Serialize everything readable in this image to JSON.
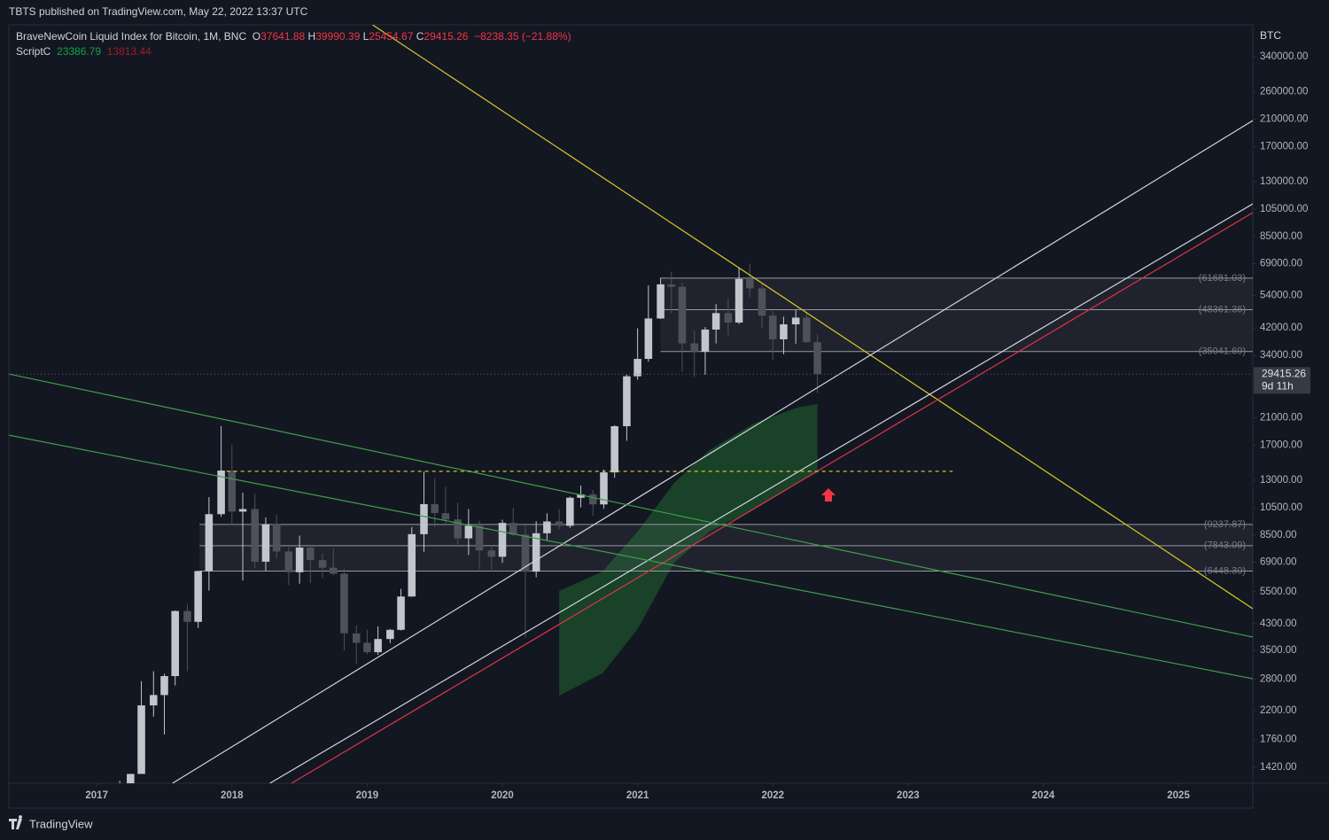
{
  "header": {
    "text": "TBTS published on TradingView.com, May 22, 2022 13:37 UTC"
  },
  "legend": {
    "symbol": "BraveNewCoin Liquid Index for Bitcoin, 1M, BNC",
    "fields": [
      {
        "key": "O",
        "value": 37641.88
      },
      {
        "key": "H",
        "value": 39990.39
      },
      {
        "key": "L",
        "value": 25454.67
      },
      {
        "key": "C",
        "value": 29415.26
      }
    ],
    "change": {
      "value": -8238.35,
      "label": "−8238.35"
    },
    "change_pct": {
      "value": -21.88,
      "label": "(−21.88%)"
    }
  },
  "footer": {
    "brand": "TradingView"
  },
  "chart_data": {
    "type": "candlestick",
    "y_axis_label": "BTC",
    "log_scale": true,
    "grid": false,
    "up_color": "#c3c5cc",
    "down_color": "#4e515b",
    "xlim": [
      2016.35,
      2025.55
    ],
    "xticks": [
      2017,
      2018,
      2019,
      2020,
      2021,
      2022,
      2023,
      2024,
      2025
    ],
    "ylim": [
      1256,
      434800
    ],
    "yticks": [
      {
        "value": 340000,
        "label": "340000.00"
      },
      {
        "value": 260000,
        "label": "260000.00"
      },
      {
        "value": 210000,
        "label": "210000.00"
      },
      {
        "value": 170000,
        "label": "170000.00"
      },
      {
        "value": 130000,
        "label": "130000.00"
      },
      {
        "value": 105000,
        "label": "105000.00"
      },
      {
        "value": 85000,
        "label": "85000.00"
      },
      {
        "value": 69000,
        "label": "69000.00"
      },
      {
        "value": 54000,
        "label": "54000.00"
      },
      {
        "value": 42000,
        "label": "42000.00"
      },
      {
        "value": 34000,
        "label": "34000.00"
      },
      {
        "value": 21000,
        "label": "21000.00"
      },
      {
        "value": 17000,
        "label": "17000.00"
      },
      {
        "value": 13000,
        "label": "13000.00"
      },
      {
        "value": 10500,
        "label": "10500.00"
      },
      {
        "value": 8500,
        "label": "8500.00"
      },
      {
        "value": 6900,
        "label": "6900.00"
      },
      {
        "value": 5500,
        "label": "5500.00"
      },
      {
        "value": 4300,
        "label": "4300.00"
      },
      {
        "value": 3500,
        "label": "3500.00"
      },
      {
        "value": 2800,
        "label": "2800.00"
      },
      {
        "value": 2200,
        "label": "2200.00"
      },
      {
        "value": 1760,
        "label": "1760.00"
      },
      {
        "value": 1420,
        "label": "1420.00"
      }
    ],
    "x": [
      2017.17,
      2017.25,
      2017.33,
      2017.42,
      2017.5,
      2017.58,
      2017.67,
      2017.75,
      2017.83,
      2017.92,
      2018.0,
      2018.08,
      2018.17,
      2018.25,
      2018.33,
      2018.42,
      2018.5,
      2018.58,
      2018.67,
      2018.75,
      2018.83,
      2018.92,
      2019.0,
      2019.08,
      2019.17,
      2019.25,
      2019.33,
      2019.42,
      2019.5,
      2019.58,
      2019.67,
      2019.75,
      2019.83,
      2019.92,
      2020.0,
      2020.08,
      2020.17,
      2020.25,
      2020.33,
      2020.42,
      2020.5,
      2020.58,
      2020.67,
      2020.75,
      2020.83,
      2020.92,
      2021.0,
      2021.08,
      2021.17,
      2021.25,
      2021.33,
      2021.42,
      2021.5,
      2021.58,
      2021.67,
      2021.75,
      2021.83,
      2021.92,
      2022.0,
      2022.08,
      2022.17,
      2022.25,
      2022.33
    ],
    "open": [
      970,
      1080,
      1350,
      2290,
      2480,
      2870,
      4740,
      4360,
      6450,
      10000,
      14000,
      10200,
      10400,
      6930,
      9250,
      7500,
      6390,
      7730,
      7020,
      6620,
      6320,
      3990,
      3710,
      3450,
      3820,
      4100,
      5300,
      8570,
      10800,
      10080,
      9600,
      8300,
      9150,
      7560,
      7200,
      9350,
      8540,
      6420,
      8630,
      9450,
      9140,
      11350,
      11650,
      10780,
      13800,
      19700,
      28950,
      33100,
      45200,
      58800,
      57700,
      37300,
      35000,
      41500,
      47100,
      43800,
      61300,
      57000,
      46200,
      38500,
      43200,
      45500,
      37641.88
    ],
    "high": [
      1280,
      1350,
      2760,
      2980,
      2920,
      4760,
      4980,
      6470,
      11400,
      19700,
      17100,
      11800,
      11700,
      9750,
      10000,
      7760,
      8480,
      7770,
      7400,
      7680,
      6550,
      4240,
      4100,
      4210,
      4130,
      5620,
      9050,
      13880,
      13200,
      12330,
      10920,
      10400,
      9510,
      7750,
      9580,
      10500,
      9190,
      9470,
      10070,
      10400,
      11450,
      12470,
      12060,
      14100,
      19860,
      29300,
      41900,
      58300,
      61800,
      64800,
      59500,
      41300,
      42300,
      50500,
      52900,
      67000,
      69000,
      59100,
      47900,
      45800,
      48200,
      47400,
      39990.39
    ],
    "low": [
      890,
      1060,
      1350,
      2100,
      1830,
      2670,
      2980,
      4160,
      5550,
      9800,
      9200,
      6000,
      6600,
      6450,
      7100,
      5800,
      5850,
      5880,
      6100,
      6250,
      3500,
      3160,
      3390,
      3380,
      3700,
      4080,
      5290,
      7480,
      9050,
      9320,
      7770,
      7300,
      6530,
      6430,
      6870,
      8450,
      3860,
      6150,
      8130,
      8900,
      8990,
      10530,
      9880,
      10430,
      13230,
      17600,
      28200,
      32400,
      45000,
      47000,
      30000,
      28800,
      29300,
      37300,
      39600,
      43300,
      53300,
      42000,
      32900,
      34300,
      37200,
      37600,
      25454.67
    ],
    "close": [
      1080,
      1350,
      2290,
      2480,
      2870,
      4740,
      4360,
      6450,
      10000,
      14000,
      10200,
      10400,
      6930,
      9250,
      7500,
      6390,
      7730,
      7020,
      6620,
      6320,
      3990,
      3710,
      3450,
      3820,
      4100,
      5300,
      8570,
      10800,
      10080,
      9600,
      8300,
      9150,
      7560,
      7200,
      9350,
      8540,
      6420,
      8630,
      9450,
      9140,
      11350,
      11650,
      10780,
      13800,
      19700,
      28950,
      33100,
      45200,
      58800,
      57700,
      37300,
      35000,
      41500,
      47100,
      43800,
      61300,
      57000,
      46200,
      38500,
      43200,
      45500,
      37641.88,
      29415.26
    ],
    "countdown": "9d 11h",
    "indicator": {
      "name": "ScriptC",
      "color": "#1b4d2a",
      "x": [
        2020.42,
        2020.74,
        2021.0,
        2021.27,
        2021.53,
        2021.86,
        2022.18,
        2022.33
      ],
      "upper": [
        5528,
        6422,
        8738,
        12715,
        16371,
        20104,
        22732,
        23386.79
      ],
      "lower": [
        2469,
        2930,
        4123,
        6882,
        8738,
        10370,
        12715,
        13813.44
      ]
    },
    "drawings": {
      "trendlines": [
        {
          "color": "#d9c927",
          "x": [
            2019.04,
            2025.55
          ],
          "y": [
            434800,
            4825
          ]
        },
        {
          "color": "#d1d4dc",
          "x": [
            2017.56,
            2025.55
          ],
          "y": [
            1256,
            207900
          ]
        },
        {
          "color": "#d1d4dc",
          "x": [
            2018.28,
            2025.55
          ],
          "y": [
            1256,
            109400
          ]
        },
        {
          "color": "#e0334a",
          "x": [
            2018.44,
            2025.55
          ],
          "y": [
            1256,
            102200
          ]
        },
        {
          "color": "#3f9e4a",
          "x": [
            2016.35,
            2025.55
          ],
          "y": [
            29470,
            3876
          ]
        },
        {
          "color": "#3f9e4a",
          "x": [
            2016.35,
            2025.55
          ],
          "y": [
            18390,
            2812
          ]
        }
      ],
      "ranges": [
        {
          "x0": 2021.17,
          "color": "#9598a1",
          "levels": [
            {
              "value": 61681.03,
              "label": "(61681.03)"
            },
            {
              "value": 48361.36,
              "label": "(48361.36)"
            },
            {
              "value": 35041.69,
              "label": "(35041.69)"
            }
          ]
        },
        {
          "x0": 2017.76,
          "color": "#9598a1",
          "levels": [
            {
              "value": 9237.87,
              "label": "(9237.87)"
            },
            {
              "value": 7843.09,
              "label": "(7843.09)"
            },
            {
              "value": 6448.3,
              "label": "(6448.30)"
            }
          ]
        }
      ],
      "dashed_level": {
        "color": "#e6d72a",
        "x": [
          2017.96,
          2023.33
        ],
        "y": 13910
      }
    }
  }
}
